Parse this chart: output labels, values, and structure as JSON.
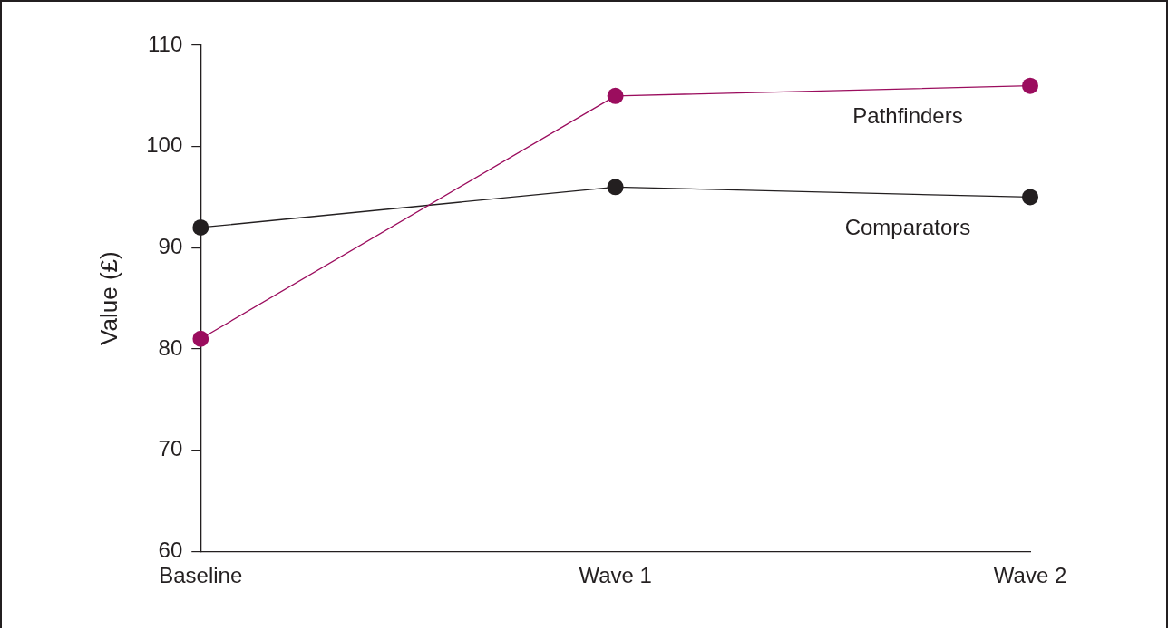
{
  "chart_data": {
    "type": "line",
    "ylabel": "Value (£)",
    "categories": [
      "Baseline",
      "Wave 1",
      "Wave 2"
    ],
    "series": [
      {
        "name": "Pathfinders",
        "color": "#9b0d5e",
        "values": [
          81,
          105,
          106
        ]
      },
      {
        "name": "Comparators",
        "color": "#231f20",
        "values": [
          92,
          96,
          95
        ]
      }
    ],
    "ylim": [
      60,
      110
    ],
    "yticks": [
      60,
      70,
      80,
      90,
      100,
      110
    ],
    "grid": false,
    "legend": false,
    "marker": "circle",
    "line_style": "solid"
  }
}
